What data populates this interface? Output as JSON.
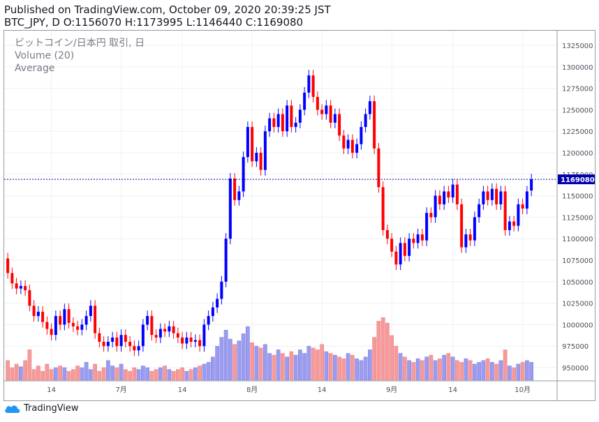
{
  "header": {
    "published": "Published on TradingView.com, October 09, 2020 20:39:25 JST",
    "ohlc": "BTC_JPY, D O:1156070 H:1173995 L:1146440 C:1169080"
  },
  "legend": {
    "symbol": "ビットコイン/日本円 取引, 日",
    "volume": "Volume (20)",
    "average": "Average"
  },
  "footer": {
    "brand": "TradingView"
  },
  "colors": {
    "up": "#0000ff",
    "down": "#ff0000",
    "vol_up": "#9b9bf0",
    "vol_down": "#f59a9a",
    "grid": "#eef0f3",
    "axis_text": "#4a4e59",
    "last_line": "#0000b0"
  },
  "chart_data": {
    "type": "candlestick",
    "y_axis": {
      "range": [
        930000,
        1335000
      ],
      "ticks": [
        1325000,
        1300000,
        1275000,
        1250000,
        1225000,
        1200000,
        1175000,
        1150000,
        1125000,
        1100000,
        1075000,
        1050000,
        1025000,
        1000000,
        975000,
        950000
      ]
    },
    "x_axis": {
      "tick_labels": [
        "14",
        "7月",
        "14",
        "8月",
        "14",
        "9月",
        "14",
        "10月"
      ],
      "tick_index": [
        10,
        26,
        40,
        56,
        72,
        88,
        102,
        118
      ]
    },
    "last_price": 1169080,
    "last_price_label": "1169080",
    "candles": [
      [
        1077000,
        1060000
      ],
      [
        1060000,
        1048000
      ],
      [
        1048000,
        1042000
      ],
      [
        1042000,
        1045000
      ],
      [
        1045000,
        1040000
      ],
      [
        1040000,
        1022000
      ],
      [
        1022000,
        1010000
      ],
      [
        1010000,
        1015000
      ],
      [
        1015000,
        1003000
      ],
      [
        1003000,
        995000
      ],
      [
        995000,
        988000
      ],
      [
        988000,
        1010000
      ],
      [
        1010000,
        1000000
      ],
      [
        1000000,
        1018000
      ],
      [
        1018000,
        1002000
      ],
      [
        1002000,
        998000
      ],
      [
        998000,
        994000
      ],
      [
        994000,
        1000000
      ],
      [
        1000000,
        1010000
      ],
      [
        1010000,
        1022000
      ],
      [
        1022000,
        990000
      ],
      [
        990000,
        980000
      ],
      [
        980000,
        975000
      ],
      [
        975000,
        980000
      ],
      [
        980000,
        985000
      ],
      [
        985000,
        975000
      ],
      [
        975000,
        988000
      ],
      [
        988000,
        980000
      ],
      [
        980000,
        975000
      ],
      [
        975000,
        970000
      ],
      [
        970000,
        975000
      ],
      [
        975000,
        1000000
      ],
      [
        1000000,
        1010000
      ],
      [
        1010000,
        988000
      ],
      [
        988000,
        985000
      ],
      [
        985000,
        995000
      ],
      [
        995000,
        992000
      ],
      [
        992000,
        998000
      ],
      [
        998000,
        990000
      ],
      [
        990000,
        985000
      ],
      [
        985000,
        978000
      ],
      [
        978000,
        985000
      ],
      [
        985000,
        980000
      ],
      [
        980000,
        982000
      ],
      [
        982000,
        975000
      ],
      [
        975000,
        1000000
      ],
      [
        1000000,
        1010000
      ],
      [
        1010000,
        1020000
      ],
      [
        1020000,
        1030000
      ],
      [
        1030000,
        1050000
      ],
      [
        1050000,
        1100000
      ],
      [
        1100000,
        1170000
      ],
      [
        1170000,
        1145000
      ],
      [
        1145000,
        1155000
      ],
      [
        1155000,
        1195000
      ],
      [
        1195000,
        1230000
      ],
      [
        1230000,
        1190000
      ],
      [
        1190000,
        1200000
      ],
      [
        1200000,
        1180000
      ],
      [
        1180000,
        1225000
      ],
      [
        1225000,
        1240000
      ],
      [
        1240000,
        1230000
      ],
      [
        1230000,
        1245000
      ],
      [
        1245000,
        1225000
      ],
      [
        1225000,
        1255000
      ],
      [
        1255000,
        1230000
      ],
      [
        1230000,
        1235000
      ],
      [
        1235000,
        1250000
      ],
      [
        1250000,
        1270000
      ],
      [
        1270000,
        1290000
      ],
      [
        1290000,
        1265000
      ],
      [
        1265000,
        1250000
      ],
      [
        1250000,
        1245000
      ],
      [
        1245000,
        1255000
      ],
      [
        1255000,
        1235000
      ],
      [
        1235000,
        1245000
      ],
      [
        1245000,
        1220000
      ],
      [
        1220000,
        1205000
      ],
      [
        1205000,
        1215000
      ],
      [
        1215000,
        1200000
      ],
      [
        1200000,
        1210000
      ],
      [
        1210000,
        1230000
      ],
      [
        1230000,
        1245000
      ],
      [
        1245000,
        1260000
      ],
      [
        1260000,
        1205000
      ],
      [
        1205000,
        1160000
      ],
      [
        1160000,
        1110000
      ],
      [
        1110000,
        1100000
      ],
      [
        1100000,
        1085000
      ],
      [
        1085000,
        1070000
      ],
      [
        1070000,
        1095000
      ],
      [
        1095000,
        1080000
      ],
      [
        1080000,
        1100000
      ],
      [
        1100000,
        1095000
      ],
      [
        1095000,
        1105000
      ],
      [
        1105000,
        1098000
      ],
      [
        1098000,
        1130000
      ],
      [
        1130000,
        1125000
      ],
      [
        1125000,
        1150000
      ],
      [
        1150000,
        1140000
      ],
      [
        1140000,
        1155000
      ],
      [
        1155000,
        1148000
      ],
      [
        1148000,
        1163000
      ],
      [
        1163000,
        1140000
      ],
      [
        1140000,
        1090000
      ],
      [
        1090000,
        1105000
      ],
      [
        1105000,
        1098000
      ],
      [
        1098000,
        1125000
      ],
      [
        1125000,
        1140000
      ],
      [
        1140000,
        1155000
      ],
      [
        1155000,
        1145000
      ],
      [
        1145000,
        1158000
      ],
      [
        1158000,
        1140000
      ],
      [
        1140000,
        1155000
      ],
      [
        1155000,
        1110000
      ],
      [
        1110000,
        1120000
      ],
      [
        1120000,
        1115000
      ],
      [
        1115000,
        1140000
      ],
      [
        1140000,
        1135000
      ],
      [
        1135000,
        1155000
      ],
      [
        1156070,
        1169080
      ]
    ],
    "volume_scale_max": 100,
    "volume": [
      22,
      14,
      18,
      15,
      22,
      34,
      12,
      16,
      10,
      18,
      12,
      14,
      16,
      14,
      10,
      12,
      16,
      14,
      20,
      12,
      18,
      10,
      14,
      22,
      16,
      14,
      18,
      12,
      10,
      14,
      12,
      16,
      14,
      10,
      12,
      14,
      16,
      12,
      10,
      12,
      14,
      10,
      12,
      14,
      16,
      18,
      20,
      26,
      38,
      48,
      56,
      46,
      40,
      44,
      52,
      60,
      42,
      38,
      36,
      40,
      30,
      28,
      34,
      30,
      26,
      32,
      28,
      34,
      30,
      38,
      36,
      34,
      40,
      32,
      30,
      28,
      26,
      24,
      30,
      28,
      24,
      22,
      26,
      34,
      48,
      66,
      70,
      64,
      50,
      38,
      30,
      26,
      22,
      20,
      24,
      22,
      26,
      28,
      22,
      24,
      28,
      30,
      26,
      22,
      20,
      24,
      22,
      18,
      20,
      22,
      24,
      20,
      18,
      22,
      34,
      16,
      14,
      18,
      20,
      22,
      20
    ],
    "volume_up": [
      false,
      false,
      false,
      true,
      false,
      false,
      false,
      false,
      false,
      false,
      false,
      true,
      false,
      true,
      false,
      false,
      false,
      true,
      true,
      true,
      false,
      false,
      false,
      true,
      true,
      false,
      true,
      false,
      false,
      false,
      true,
      true,
      true,
      false,
      false,
      true,
      false,
      true,
      false,
      false,
      false,
      true,
      false,
      true,
      false,
      true,
      true,
      true,
      true,
      true,
      true,
      true,
      false,
      true,
      true,
      true,
      false,
      true,
      false,
      true,
      true,
      false,
      true,
      false,
      true,
      false,
      true,
      true,
      true,
      true,
      false,
      false,
      false,
      true,
      false,
      true,
      false,
      false,
      true,
      false,
      true,
      true,
      true,
      true,
      false,
      false,
      false,
      false,
      false,
      false,
      true,
      false,
      true,
      false,
      true,
      false,
      true,
      false,
      true,
      false,
      true,
      false,
      true,
      false,
      false,
      true,
      false,
      true,
      true,
      true,
      false,
      true,
      false,
      true,
      false,
      true,
      false,
      true,
      false,
      true,
      true
    ]
  }
}
